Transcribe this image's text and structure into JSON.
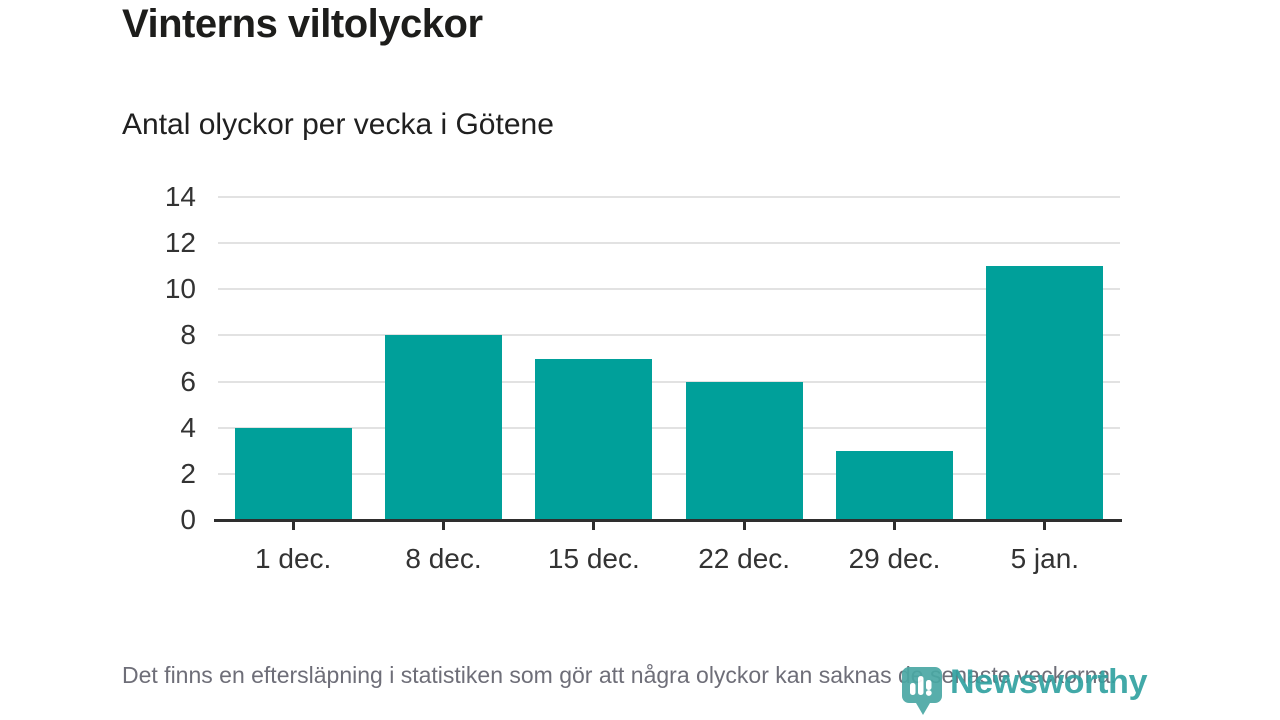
{
  "title": "Vinterns viltolyckor",
  "subtitle": "Antal olyckor per vecka i Götene",
  "footer": {
    "text": "Det finns en eftersläpning i statistiken som gör att några olyckor kan saknas de senaste veckorna."
  },
  "branding": {
    "name": "Newsworthy",
    "icon": "bar-chart-pin-icon",
    "text_color": "#32a2a1",
    "icon_color": "#4aa8a4"
  },
  "colors": {
    "bar": "#00a09a",
    "gridline": "#e2e2e2",
    "axis_line": "#2e2e2e",
    "tick_label": "#333333",
    "footer_text": "#6e6e78",
    "title_text": "#1d1d1b"
  },
  "chart_data": {
    "type": "bar",
    "categories": [
      "1 dec.",
      "8 dec.",
      "15 dec.",
      "22 dec.",
      "29 dec.",
      "5 jan."
    ],
    "values": [
      4,
      8,
      7,
      6,
      3,
      11
    ],
    "title": "Vinterns viltolyckor",
    "subtitle": "Antal olyckor per vecka i Götene",
    "xlabel": "",
    "ylabel": "",
    "ylim": [
      0,
      14
    ],
    "yticks": [
      0,
      2,
      4,
      6,
      8,
      10,
      12,
      14
    ],
    "grid": true,
    "legend": false,
    "bar_color": "#00a09a"
  }
}
